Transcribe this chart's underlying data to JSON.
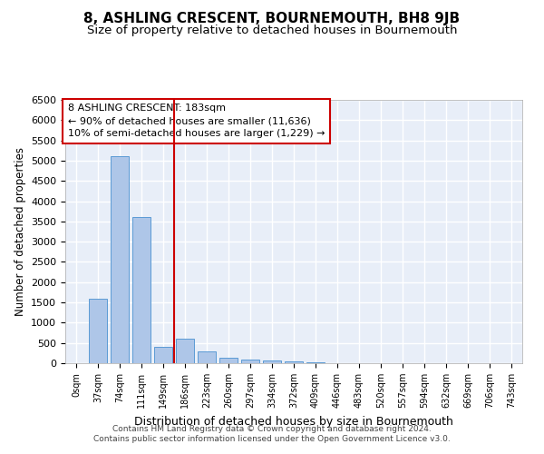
{
  "title": "8, ASHLING CRESCENT, BOURNEMOUTH, BH8 9JB",
  "subtitle": "Size of property relative to detached houses in Bournemouth",
  "xlabel": "Distribution of detached houses by size in Bournemouth",
  "ylabel": "Number of detached properties",
  "footer_line1": "Contains HM Land Registry data © Crown copyright and database right 2024.",
  "footer_line2": "Contains public sector information licensed under the Open Government Licence v3.0.",
  "bar_labels": [
    "0sqm",
    "37sqm",
    "74sqm",
    "111sqm",
    "149sqm",
    "186sqm",
    "223sqm",
    "260sqm",
    "297sqm",
    "334sqm",
    "372sqm",
    "409sqm",
    "446sqm",
    "483sqm",
    "520sqm",
    "557sqm",
    "594sqm",
    "632sqm",
    "669sqm",
    "706sqm",
    "743sqm"
  ],
  "bar_values": [
    0,
    1600,
    5100,
    3600,
    400,
    600,
    290,
    145,
    100,
    75,
    50,
    30,
    0,
    0,
    0,
    0,
    0,
    0,
    0,
    0,
    0
  ],
  "bar_color": "#aec6e8",
  "bar_edge_color": "#5b9bd5",
  "background_color": "#e8eef8",
  "grid_color": "#ffffff",
  "vline_x_index": 5,
  "vline_color": "#cc0000",
  "ylim": [
    0,
    6500
  ],
  "yticks": [
    0,
    500,
    1000,
    1500,
    2000,
    2500,
    3000,
    3500,
    4000,
    4500,
    5000,
    5500,
    6000,
    6500
  ],
  "annotation_title": "8 ASHLING CRESCENT: 183sqm",
  "annotation_line2": "← 90% of detached houses are smaller (11,636)",
  "annotation_line3": "10% of semi-detached houses are larger (1,229) →",
  "annotation_box_color": "#cc0000",
  "title_fontsize": 11,
  "subtitle_fontsize": 9.5,
  "tick_fontsize": 8,
  "ylabel_fontsize": 8.5,
  "xlabel_fontsize": 9,
  "annotation_fontsize": 8
}
